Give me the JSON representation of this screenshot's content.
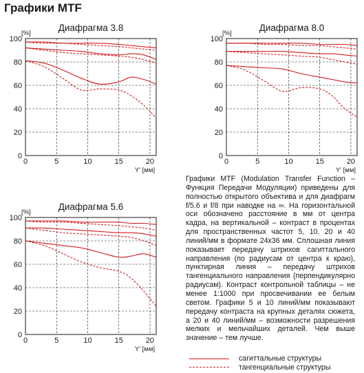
{
  "page_title": "Графики MTF",
  "description": "Графики MTF (Modulation Transfer Function – Функция Передачи Модуляции) приведены для полностью открытого объектива и для диафрагм f/5.6 и f/8 при наводке на ∞. На горизонтальной оси обозначено расстояние в мм от центра кадра, на вертикальной – контраст в процентах для пространственных частот 5, 10, 20 и 40 линий/мм в формате 24x36 мм. Сплошная линия показывает передачу штрихов сагиттального направления (по радиусам от центра к краю), пунктирная линия – передачу штрихов тангенциального направления (перпендикулярно радиусам). Контраст контрольной таблицы – не менее 1:1000 при просвечивании ее белым светом. Графики 5 и 10 линий/мм показывают передачу контраста на крупных деталях сюжета, а 20 и 40 линий/мм – возможности разрешения мелких и мельчайших деталей. Чем выше значение – тем лучше.",
  "legend": [
    {
      "label": "сагиттальные структуры",
      "style": "solid"
    },
    {
      "label": "тангенциальные структуры",
      "style": "dashed"
    }
  ],
  "colors": {
    "curve": "#d01a1a",
    "axis": "#1a1a1a"
  },
  "chart_data": [
    {
      "type": "line",
      "title": "Диафрагма 3.8",
      "xlabel": "Y' [мм]",
      "ylabel": "[%]",
      "xlim": [
        0,
        21
      ],
      "ylim": [
        0,
        100
      ],
      "xticks": [
        0,
        5,
        10,
        15,
        20
      ],
      "yticks": [
        0,
        20,
        40,
        60,
        80,
        100
      ],
      "grid": "dashed",
      "x": [
        0,
        3,
        6,
        9,
        12,
        15,
        17,
        19,
        21
      ],
      "series": [
        {
          "style": "solid",
          "values": [
            97,
            97,
            96,
            96,
            96,
            95,
            94,
            93,
            92
          ]
        },
        {
          "style": "dashed",
          "values": [
            97,
            96,
            96,
            95,
            94,
            93,
            92,
            91,
            90
          ]
        },
        {
          "style": "solid",
          "values": [
            92,
            91,
            90,
            89,
            87,
            86,
            87,
            86,
            82
          ]
        },
        {
          "style": "dashed",
          "values": [
            92,
            90,
            88,
            87,
            86,
            85,
            84,
            82,
            79
          ]
        },
        {
          "style": "solid",
          "values": [
            81,
            79,
            73,
            66,
            61,
            63,
            67,
            65,
            61
          ]
        },
        {
          "style": "dashed",
          "values": [
            81,
            76,
            66,
            56,
            57,
            56,
            51,
            43,
            32
          ]
        }
      ]
    },
    {
      "type": "line",
      "title": "Диафрагма 8.0",
      "xlabel": "Y' [мм]",
      "ylabel": "[%]",
      "xlim": [
        0,
        21
      ],
      "ylim": [
        0,
        100
      ],
      "xticks": [
        0,
        5,
        10,
        15,
        20
      ],
      "yticks": [
        0,
        20,
        40,
        60,
        80,
        100
      ],
      "grid": "dashed",
      "x": [
        0,
        3,
        6,
        9,
        12,
        15,
        17,
        19,
        21
      ],
      "series": [
        {
          "style": "solid",
          "values": [
            96,
            96,
            96,
            96,
            96,
            95,
            95,
            95,
            94
          ]
        },
        {
          "style": "dashed",
          "values": [
            96,
            96,
            95,
            95,
            94,
            94,
            93,
            92,
            91
          ]
        },
        {
          "style": "solid",
          "values": [
            89,
            89,
            89,
            89,
            88,
            87,
            87,
            86,
            85
          ]
        },
        {
          "style": "dashed",
          "values": [
            89,
            88,
            87,
            86,
            85,
            84,
            82,
            80,
            78
          ]
        },
        {
          "style": "solid",
          "values": [
            77,
            76,
            75,
            74,
            70,
            67,
            65,
            63,
            62
          ]
        },
        {
          "style": "dashed",
          "values": [
            77,
            73,
            64,
            55,
            58,
            57,
            51,
            40,
            33
          ]
        }
      ]
    },
    {
      "type": "line",
      "title": "Диафрагма 5.6",
      "xlabel": "Y' [мм]",
      "ylabel": "[%]",
      "xlim": [
        0,
        21
      ],
      "ylim": [
        0,
        100
      ],
      "xticks": [
        0,
        5,
        10,
        15,
        20
      ],
      "yticks": [
        0,
        20,
        40,
        60,
        80,
        100
      ],
      "grid": "dashed",
      "x": [
        0,
        3,
        6,
        9,
        12,
        15,
        17,
        19,
        21
      ],
      "series": [
        {
          "style": "solid",
          "values": [
            97,
            97,
            97,
            96,
            96,
            96,
            95,
            95,
            94
          ]
        },
        {
          "style": "dashed",
          "values": [
            97,
            96,
            96,
            95,
            94,
            93,
            92,
            91,
            89
          ]
        },
        {
          "style": "solid",
          "values": [
            91,
            91,
            90,
            89,
            88,
            87,
            87,
            86,
            84
          ]
        },
        {
          "style": "dashed",
          "values": [
            91,
            89,
            87,
            86,
            85,
            84,
            83,
            80,
            76
          ]
        },
        {
          "style": "solid",
          "values": [
            80,
            78,
            76,
            74,
            70,
            66,
            67,
            69,
            66
          ]
        },
        {
          "style": "dashed",
          "values": [
            80,
            76,
            69,
            62,
            57,
            54,
            48,
            37,
            24
          ]
        }
      ]
    }
  ]
}
